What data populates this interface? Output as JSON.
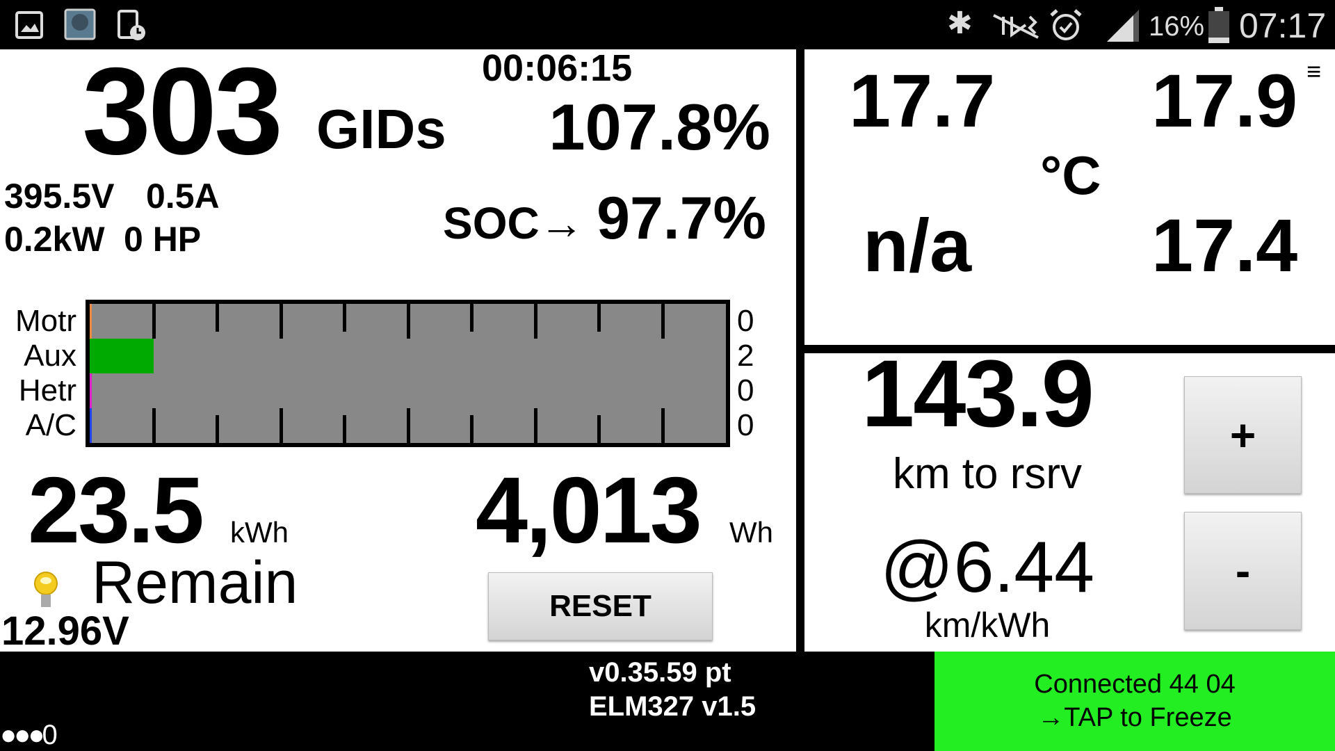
{
  "status_bar": {
    "left_icons": [
      "image-icon",
      "app-thumbnail-icon",
      "screen-timer-icon"
    ],
    "right_icons": [
      "bluetooth-icon",
      "mute-vibrate-icon",
      "alarm-icon",
      "signal-icon",
      "battery-icon"
    ],
    "battery": "16%",
    "time": "07:17"
  },
  "left": {
    "gids_value": "303",
    "gids_unit": "GIDs",
    "elapsed": "00:06:15",
    "percent": "107.8%",
    "voltage": "395.5V",
    "current": "0.5A",
    "power_kw": "0.2kW",
    "power_hp": "0 HP",
    "soc_label": "SOC→",
    "soc_value": "97.7%",
    "energy_remaining": "23.5",
    "energy_unit": "kWh",
    "remain_label": "Remain",
    "aux_voltage": "12.96V",
    "wh_value": "4,013",
    "wh_unit": "Wh",
    "reset_label": "RESET"
  },
  "power_bars": [
    {
      "label": "Motr",
      "value": "0",
      "fill": 0,
      "color": "#f08a40"
    },
    {
      "label": "Aux",
      "value": "2",
      "fill": 0.1,
      "color": "#00aa00"
    },
    {
      "label": "Hetr",
      "value": "0",
      "fill": 0,
      "color": "#dd22cc"
    },
    {
      "label": "A/C",
      "value": "0",
      "fill": 0,
      "color": "#2244ee"
    }
  ],
  "temps": {
    "top_left": "17.7",
    "top_right": "17.9",
    "unit": "°C",
    "bottom_left": "n/a",
    "bottom_right": "17.4",
    "menu_icon": "menu-icon"
  },
  "range": {
    "value": "143.9",
    "label": "km to rsrv",
    "efficiency": "@6.44",
    "efficiency_unit": "km/kWh",
    "plus_label": "+",
    "minus_label": "-"
  },
  "footer": {
    "version": "v0.35.59 pt",
    "adapter": "ELM327 v1.5",
    "indicator": "●●●0",
    "connection": "Connected 44 04",
    "tap_hint": "→TAP to Freeze",
    "connection_color": "#22ee22"
  }
}
